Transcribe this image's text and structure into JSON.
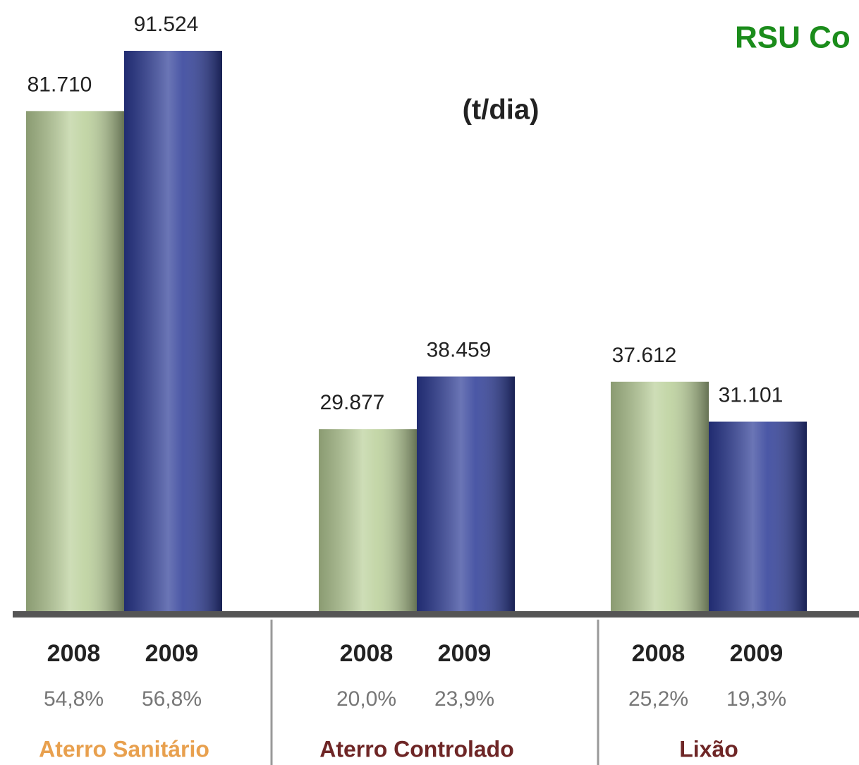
{
  "chart_data": {
    "type": "bar",
    "title": "RSU Co",
    "subtitle": "(t/dia)",
    "categories": [
      "Aterro Sanitário",
      "Aterro Controlado",
      "Lixão"
    ],
    "series": [
      {
        "name": "2008",
        "color": "#b9cf98",
        "values": [
          81710,
          29877,
          37612
        ],
        "value_labels": [
          "81.710",
          "29.877",
          "37.612"
        ],
        "percent_values": [
          54.8,
          20.0,
          25.2
        ],
        "percent_labels": [
          "54,8%",
          "20,0%",
          "25,2%"
        ]
      },
      {
        "name": "2009",
        "color": "#2b3a96",
        "values": [
          91524,
          38459,
          31101
        ],
        "value_labels": [
          "91.524",
          "38.459",
          "31.101"
        ],
        "percent_values": [
          56.8,
          23.9,
          19.3
        ],
        "percent_labels": [
          "56,8%",
          "23,9%",
          "19,3%"
        ]
      }
    ]
  }
}
